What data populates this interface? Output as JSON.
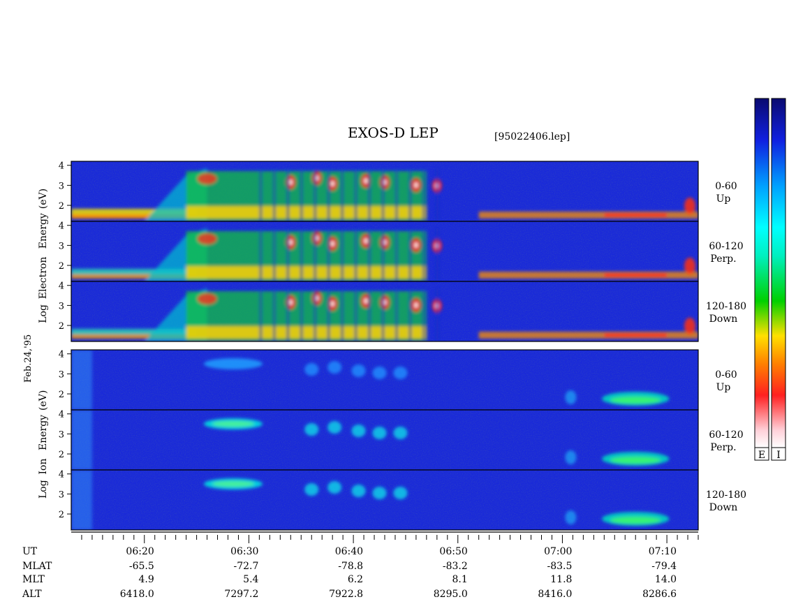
{
  "chart_data": {
    "type": "heatmap",
    "title": "EXOS-D LEP",
    "file_label": "[95022406.lep]",
    "side_label": "Feb.24,'95",
    "x_axis": {
      "name": "UT",
      "start": "06:13",
      "end": "07:13",
      "tick_labels": [
        "06:20",
        "06:30",
        "06:40",
        "06:50",
        "07:00",
        "07:10"
      ]
    },
    "ephemeris": [
      {
        "name": "UT",
        "values": [
          "06:20",
          "06:30",
          "06:40",
          "06:50",
          "07:00",
          "07:10"
        ]
      },
      {
        "name": "MLAT",
        "values": [
          "-65.5",
          "-72.7",
          "-78.8",
          "-83.2",
          "-83.5",
          "-79.4"
        ]
      },
      {
        "name": "MLT",
        "values": [
          "4.9",
          "5.4",
          "6.2",
          "8.1",
          "11.8",
          "14.0"
        ]
      },
      {
        "name": "ALT",
        "values": [
          "6418.0",
          "7297.2",
          "7922.8",
          "8295.0",
          "8416.0",
          "8286.6"
        ]
      }
    ],
    "species": [
      {
        "name": "Electron",
        "ylabel": [
          "Log",
          "Electron",
          "Energy",
          "(eV)"
        ],
        "yticks": [
          "2",
          "3",
          "4"
        ],
        "ylim": [
          1.2,
          4.2
        ],
        "panels": [
          {
            "angle": "0-60",
            "direction": "Up"
          },
          {
            "angle": "60-120",
            "direction": "Perp."
          },
          {
            "angle": "120-180",
            "direction": "Down"
          }
        ]
      },
      {
        "name": "Ion",
        "ylabel": [
          "Log",
          "Ion",
          "Energy",
          "(eV)"
        ],
        "yticks": [
          "2",
          "3",
          "4"
        ],
        "ylim": [
          1.2,
          4.2
        ],
        "panels": [
          {
            "angle": "0-60",
            "direction": "Up"
          },
          {
            "angle": "60-120",
            "direction": "Perp."
          },
          {
            "angle": "120-180",
            "direction": "Down"
          }
        ]
      }
    ],
    "colorbars": [
      {
        "label": "E",
        "scale": "rainbow"
      },
      {
        "label": "I",
        "scale": "rainbow"
      }
    ]
  }
}
